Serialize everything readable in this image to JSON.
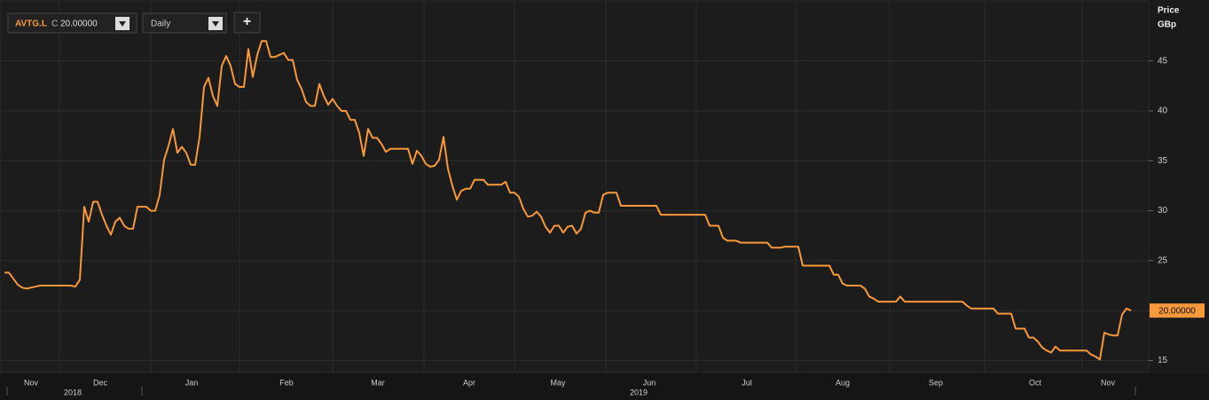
{
  "header": {
    "symbol": "AVTG.L",
    "close_prefix": "C",
    "price_label": "20.00000",
    "interval": "Daily",
    "add_button": "+"
  },
  "chart_data": {
    "type": "line",
    "y_axis_label": [
      "Price",
      "GBp"
    ],
    "x_labels": [
      "Nov",
      "Dec",
      "Jan",
      "Feb",
      "Mar",
      "Apr",
      "May",
      "Jun",
      "Jul",
      "Aug",
      "Sep",
      "Oct",
      "Nov"
    ],
    "year_labels": [
      "2018",
      "2019"
    ],
    "ylim": [
      13.8,
      51.1
    ],
    "yticks": [
      15,
      20,
      25,
      30,
      35,
      40,
      45
    ],
    "grid": true,
    "series": [
      {
        "name": "AVTG.L",
        "color": "#f7983a",
        "values": [
          23.8,
          23.8,
          23.2,
          22.6,
          22.3,
          22.2,
          22.3,
          22.4,
          22.5,
          22.5,
          22.5,
          22.5,
          22.5,
          22.5,
          22.5,
          22.5,
          22.4,
          23.1,
          30.4,
          28.9,
          30.9,
          30.9,
          29.6,
          28.5,
          27.6,
          28.9,
          29.3,
          28.5,
          28.2,
          28.2,
          30.4,
          30.4,
          30.4,
          30.0,
          30.0,
          31.6,
          35.1,
          36.5,
          38.2,
          35.8,
          36.4,
          35.8,
          34.6,
          34.6,
          37.4,
          42.4,
          43.3,
          41.5,
          40.5,
          44.5,
          45.5,
          44.5,
          42.7,
          42.4,
          42.4,
          46.2,
          43.4,
          45.6,
          47.0,
          47.0,
          45.4,
          45.4,
          45.6,
          45.8,
          45.1,
          45.1,
          43.1,
          42.2,
          40.9,
          40.5,
          40.5,
          42.7,
          41.5,
          40.6,
          41.2,
          40.5,
          40.0,
          40.0,
          39.1,
          39.1,
          37.8,
          35.5,
          38.2,
          37.3,
          37.3,
          36.7,
          35.9,
          36.2,
          36.2,
          36.2,
          36.2,
          36.2,
          34.7,
          36.0,
          35.5,
          34.7,
          34.4,
          34.5,
          35.1,
          37.4,
          34.2,
          32.5,
          31.1,
          32.0,
          32.2,
          32.2,
          33.1,
          33.1,
          33.1,
          32.6,
          32.6,
          32.6,
          32.6,
          32.9,
          31.8,
          31.8,
          31.4,
          30.2,
          29.4,
          29.5,
          29.9,
          29.4,
          28.4,
          27.8,
          28.5,
          28.5,
          27.8,
          28.4,
          28.5,
          27.7,
          28.2,
          29.8,
          30.0,
          29.8,
          29.8,
          31.6,
          31.8,
          31.8,
          31.8,
          30.5,
          30.5,
          30.5,
          30.5,
          30.5,
          30.5,
          30.5,
          30.5,
          30.5,
          29.6,
          29.6,
          29.6,
          29.6,
          29.6,
          29.6,
          29.6,
          29.6,
          29.6,
          29.6,
          29.6,
          28.5,
          28.5,
          28.5,
          27.3,
          27.0,
          27.0,
          27.0,
          26.8,
          26.8,
          26.8,
          26.8,
          26.8,
          26.8,
          26.8,
          26.3,
          26.3,
          26.3,
          26.4,
          26.4,
          26.4,
          26.4,
          24.5,
          24.5,
          24.5,
          24.5,
          24.5,
          24.5,
          24.5,
          23.6,
          23.6,
          22.7,
          22.5,
          22.5,
          22.5,
          22.5,
          22.2,
          21.4,
          21.2,
          20.9,
          20.9,
          20.9,
          20.9,
          20.9,
          21.4,
          20.9,
          20.9,
          20.9,
          20.9,
          20.9,
          20.9,
          20.9,
          20.9,
          20.9,
          20.9,
          20.9,
          20.9,
          20.9,
          20.9,
          20.5,
          20.2,
          20.2,
          20.2,
          20.2,
          20.2,
          20.2,
          19.7,
          19.7,
          19.7,
          19.7,
          18.2,
          18.2,
          18.2,
          17.3,
          17.3,
          16.9,
          16.3,
          16.0,
          15.8,
          16.4,
          16.0,
          16.0,
          16.0,
          16.0,
          16.0,
          16.0,
          16.0,
          15.6,
          15.4,
          15.1,
          17.8,
          17.6,
          17.5,
          17.5,
          19.6,
          20.2,
          20.0
        ]
      }
    ]
  }
}
